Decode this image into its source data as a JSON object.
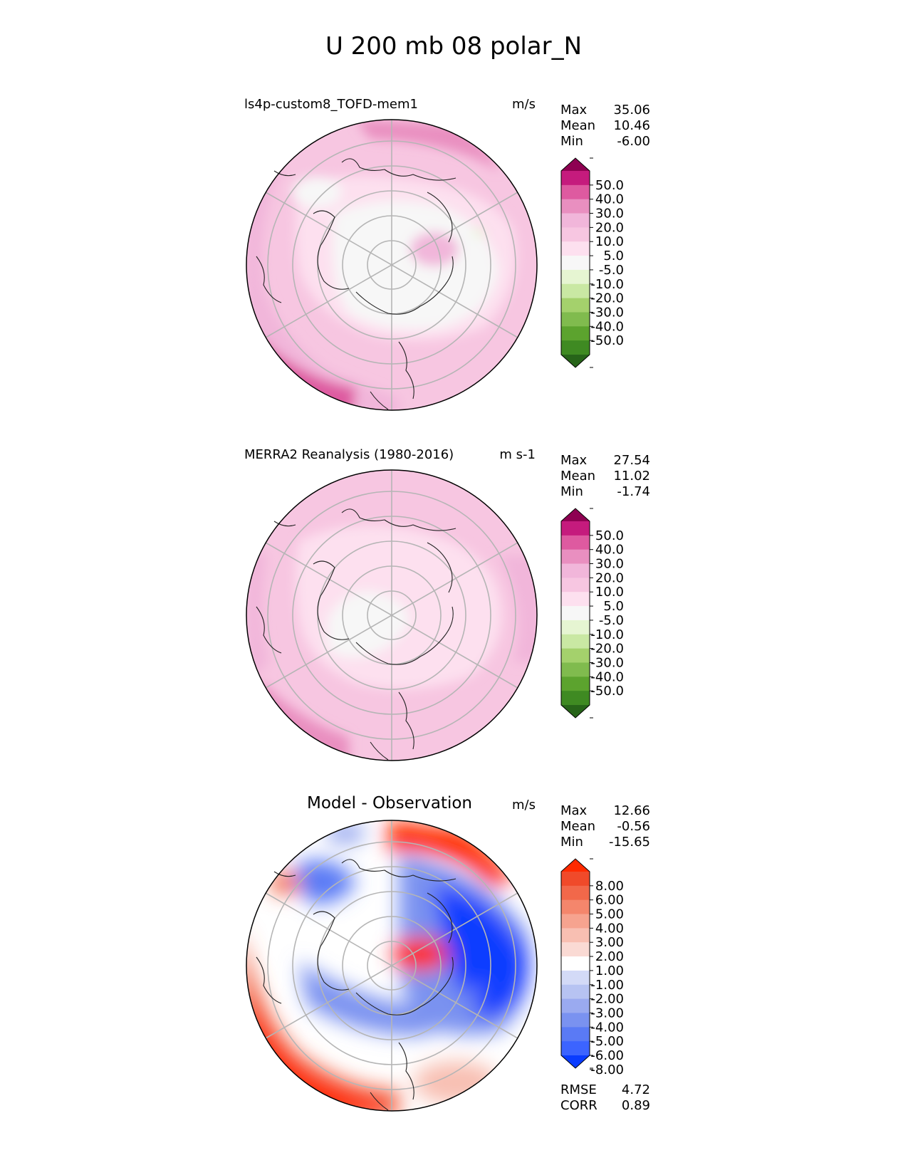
{
  "figure": {
    "title": "U 200 mb 08 polar_N"
  },
  "colors": {
    "div_pos": [
      "#d0262a",
      "#f1f1f1"
    ],
    "rb_scale": [
      "#0a3cff",
      "#3c64ff",
      "#5a7af5",
      "#7a92f0",
      "#9aaaf0",
      "#b7c3f2",
      "#d3daf7",
      "#ffffff",
      "#fadad4",
      "#f8bfb2",
      "#f6a38f",
      "#f4866c",
      "#f2684a",
      "#f04a2a",
      "#ff2a00"
    ],
    "pg_scale": [
      "#276419",
      "#3f8a22",
      "#5ca32e",
      "#80bb4e",
      "#a4d16c",
      "#c9e8a3",
      "#e6f5d2",
      "#f7f7f7",
      "#fde0ef",
      "#f7c6e1",
      "#f1b6da",
      "#e98fc0",
      "#de5aa0",
      "#c51b7d",
      "#8e0152"
    ]
  },
  "chart_data": [
    {
      "type": "heatmap",
      "panel": "model",
      "title": "ls4p-custom8_TOFD-mem1",
      "units": "m/s",
      "stats": {
        "max_label": "Max",
        "max": "35.06",
        "mean_label": "Mean",
        "mean": "10.46",
        "min_label": "Min",
        "min": "-6.00"
      },
      "colorbar": {
        "levels": [
          "50.0",
          "40.0",
          "30.0",
          "20.0",
          "10.0",
          "5.0",
          "-5.0",
          "-10.0",
          "-20.0",
          "-30.0",
          "-40.0",
          "-50.0"
        ]
      },
      "field": {
        "background": "#f7c6e1",
        "regions": [
          {
            "level": "#f1b6da",
            "shape": "outer-west-band"
          },
          {
            "level": "#de5aa0",
            "shape": "southwest-jet"
          },
          {
            "level": "#fde0ef",
            "shape": "inner-ring"
          },
          {
            "level": "#f7f7f7",
            "shape": "polar-cap"
          },
          {
            "level": "#e98fc0",
            "shape": "north-edge"
          }
        ]
      }
    },
    {
      "type": "heatmap",
      "panel": "obs",
      "title": "MERRA2 Reanalysis (1980-2016)",
      "units": "m s-1",
      "stats": {
        "max_label": "Max",
        "max": "27.54",
        "mean_label": "Mean",
        "mean": "11.02",
        "min_label": "Min",
        "min": "-1.74"
      },
      "colorbar": {
        "levels": [
          "50.0",
          "40.0",
          "30.0",
          "20.0",
          "10.0",
          "5.0",
          "-5.0",
          "-10.0",
          "-20.0",
          "-30.0",
          "-40.0",
          "-50.0"
        ]
      },
      "field": {
        "background": "#f7c6e1",
        "regions": [
          {
            "level": "#f1b6da",
            "shape": "outer-west-band"
          },
          {
            "level": "#e98fc0",
            "shape": "southwest-jet"
          },
          {
            "level": "#fde0ef",
            "shape": "inner-ring"
          },
          {
            "level": "#f7f7f7",
            "shape": "polar-cap"
          }
        ]
      }
    },
    {
      "type": "heatmap",
      "panel": "diff",
      "title": "Model - Observation",
      "units": "m/s",
      "stats": {
        "max_label": "Max",
        "max": "12.66",
        "mean_label": "Mean",
        "mean": "-0.56",
        "min_label": "Min",
        "min": "-15.65"
      },
      "colorbar": {
        "levels": [
          "8.00",
          "6.00",
          "5.00",
          "4.00",
          "3.00",
          "2.00",
          "1.00",
          "-1.00",
          "-2.00",
          "-3.00",
          "-4.00",
          "-5.00",
          "-6.00",
          "-8.00"
        ]
      },
      "metrics": {
        "rmse_label": "RMSE",
        "rmse": "4.72",
        "corr_label": "CORR",
        "corr": "0.89"
      }
    }
  ]
}
